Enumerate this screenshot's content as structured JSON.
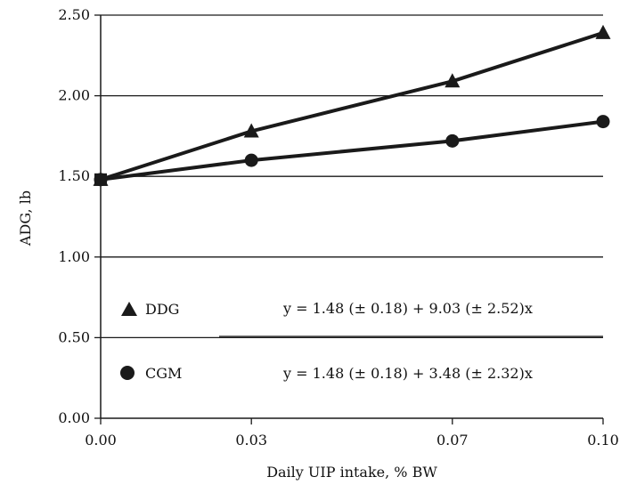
{
  "chart_data": {
    "type": "line",
    "xlabel": "Daily UIP intake, % BW",
    "ylabel": "ADG, lb",
    "x": [
      0.0,
      0.03,
      0.07,
      0.1
    ],
    "x_tick_labels": [
      "0.00",
      "0.03",
      "0.07",
      "0.10"
    ],
    "ylim": [
      0,
      2.5
    ],
    "y_ticks": [
      0,
      0.5,
      1.0,
      1.5,
      2.0,
      2.5
    ],
    "y_tick_labels": [
      "0.00",
      "0.50",
      "1.00",
      "1.50",
      "2.00",
      "2.50"
    ],
    "grid": "horizontal",
    "series": [
      {
        "name": "DDG",
        "marker": "triangle",
        "values": [
          1.48,
          1.78,
          2.09,
          2.39
        ],
        "equation": "y = 1.48 (± 0.18) + 9.03 (± 2.52)x"
      },
      {
        "name": "CGM",
        "marker": "circle",
        "values": [
          1.48,
          1.6,
          1.72,
          1.84
        ],
        "equation": "y = 1.48 (± 0.18) + 3.48 (± 2.32)x"
      }
    ],
    "colors": {
      "line": "#1a1a1a",
      "grid": "#1a1a1a",
      "axis": "#1a1a1a"
    }
  }
}
